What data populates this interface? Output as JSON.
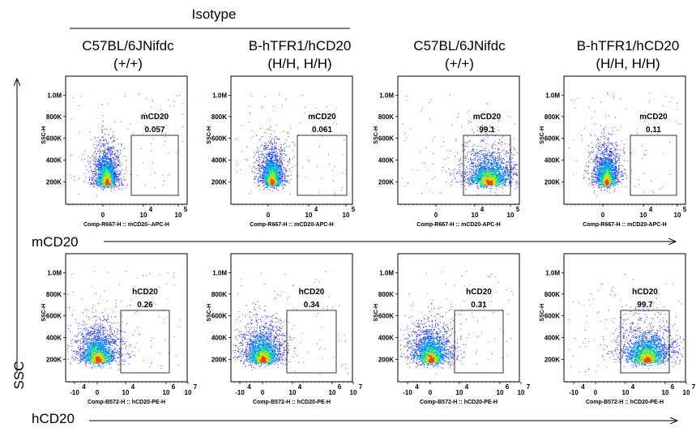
{
  "header": {
    "isotype": "Isotype",
    "columns": [
      {
        "line1": "C57BL/6JNifdc",
        "line2": "(+/+)"
      },
      {
        "line1": "B-hTFR1/hCD20",
        "line2": "(H/H, H/H)"
      },
      {
        "line1": "C57BL/6JNifdc",
        "line2": "(+/+)"
      },
      {
        "line1": "B-hTFR1/hCD20",
        "line2": "(H/H, H/H)"
      }
    ]
  },
  "axes": {
    "ssc_label": "SSC",
    "row1_x_label": "mCD20",
    "row2_x_label": "hCD20"
  },
  "chart_data": [
    {
      "type": "scatter",
      "panel": "row1-col1",
      "gate_name": "mCD20",
      "gate_value": "0.057",
      "xlabel": "Comp-R667-H :: mCD20--APC-H",
      "ylabel": "SSC-H",
      "y_ticks": [
        "1.0M",
        "800K",
        "600K",
        "400K",
        "200K"
      ],
      "x_ticks": [
        "0",
        "10",
        "10"
      ],
      "x_tick_exps": [
        "",
        "4",
        "5"
      ],
      "population": "negative"
    },
    {
      "type": "scatter",
      "panel": "row1-col2",
      "gate_name": "mCD20",
      "gate_value": "0.061",
      "xlabel": "Comp-R667-H :: mCD20-APC-H",
      "ylabel": "SSC-H",
      "y_ticks": [
        "1.0M",
        "800K",
        "600K",
        "400K",
        "200K"
      ],
      "x_ticks": [
        "0",
        "10",
        "10"
      ],
      "x_tick_exps": [
        "",
        "4",
        "5"
      ],
      "population": "negative"
    },
    {
      "type": "scatter",
      "panel": "row1-col3",
      "gate_name": "mCD20",
      "gate_value": "99.1",
      "xlabel": "Comp-R667-H :: mCD20-APC-H",
      "ylabel": "SSC-H",
      "y_ticks": [
        "1.0M",
        "800K",
        "600K",
        "400K",
        "200K"
      ],
      "x_ticks": [
        "0",
        "10",
        "10"
      ],
      "x_tick_exps": [
        "",
        "4",
        "5"
      ],
      "population": "positive"
    },
    {
      "type": "scatter",
      "panel": "row1-col4",
      "gate_name": "mCD20",
      "gate_value": "0.11",
      "xlabel": "Comp-R667-H :: mCD20-APC-H",
      "ylabel": "SSC-H",
      "y_ticks": [
        "1.0M",
        "800K",
        "600K",
        "400K",
        "200K"
      ],
      "x_ticks": [
        "0",
        "10",
        "10"
      ],
      "x_tick_exps": [
        "",
        "4",
        "5"
      ],
      "population": "negative"
    },
    {
      "type": "scatter",
      "panel": "row2-col1",
      "gate_name": "hCD20",
      "gate_value": "0.26",
      "xlabel": "Comp-B572-H :: hCD20-PE-H",
      "ylabel": "SSC-H",
      "y_ticks": [
        "1.0M",
        "800K",
        "600K",
        "400K",
        "200K"
      ],
      "x_ticks": [
        "-10",
        "0",
        "10",
        "10",
        "10"
      ],
      "x_tick_exps": [
        "4",
        "",
        "4",
        "6",
        "7"
      ],
      "population": "negative"
    },
    {
      "type": "scatter",
      "panel": "row2-col2",
      "gate_name": "hCD20",
      "gate_value": "0.34",
      "xlabel": "Comp-B572-H :: hCD20-PE-H",
      "ylabel": "SSC-H",
      "y_ticks": [
        "1.0M",
        "800K",
        "600K",
        "400K",
        "200K"
      ],
      "x_ticks": [
        "-10",
        "0",
        "10",
        "10",
        "10"
      ],
      "x_tick_exps": [
        "4",
        "",
        "4",
        "6",
        "7"
      ],
      "population": "negative"
    },
    {
      "type": "scatter",
      "panel": "row2-col3",
      "gate_name": "hCD20",
      "gate_value": "0.31",
      "xlabel": "Comp-B572-H :: hCD20-PE-H",
      "ylabel": "SSC-H",
      "y_ticks": [
        "1.0M",
        "800K",
        "600K",
        "400K",
        "200K"
      ],
      "x_ticks": [
        "-10",
        "0",
        "10",
        "10",
        "10"
      ],
      "x_tick_exps": [
        "4",
        "",
        "4",
        "6",
        "7"
      ],
      "population": "negative"
    },
    {
      "type": "scatter",
      "panel": "row2-col4",
      "gate_name": "hCD20",
      "gate_value": "99.7",
      "xlabel": "Comp-B572-H :: hCD20-PE-H",
      "ylabel": "SSC-H",
      "y_ticks": [
        "1.0M",
        "800K",
        "600K",
        "400K",
        "200K"
      ],
      "x_ticks": [
        "-10",
        "0",
        "10",
        "10",
        "10"
      ],
      "x_tick_exps": [
        "4",
        "",
        "4",
        "6",
        "7"
      ],
      "population": "positive"
    }
  ]
}
